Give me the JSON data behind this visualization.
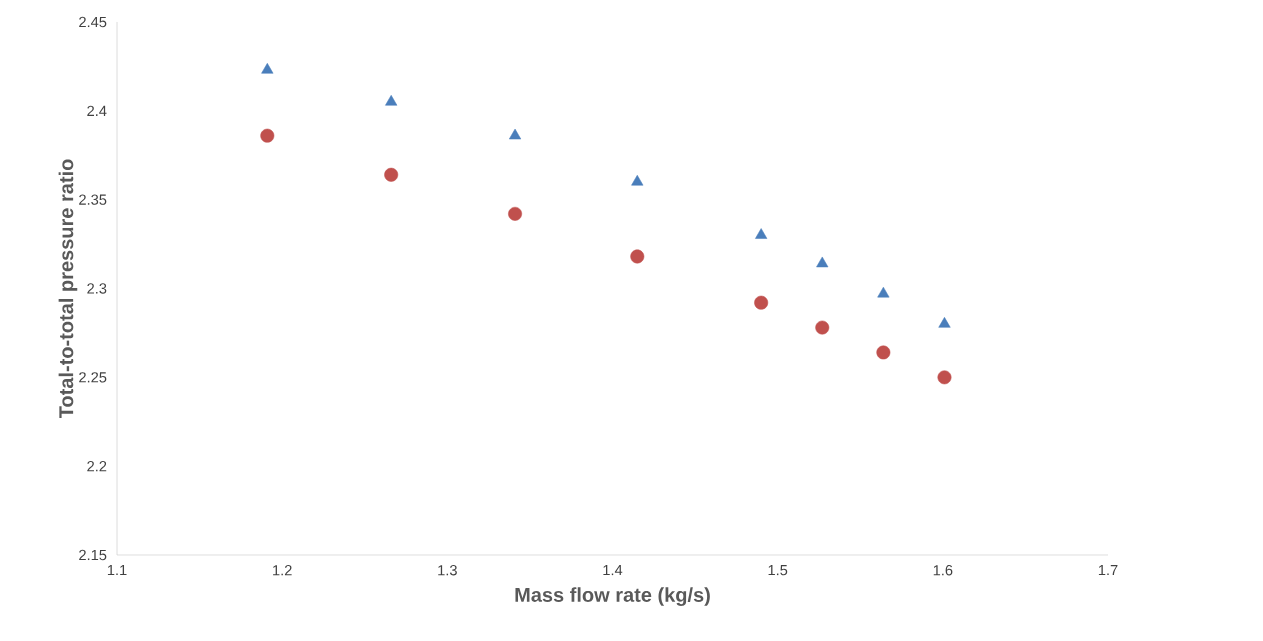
{
  "chart_data": {
    "type": "scatter",
    "xlabel": "Mass flow rate (kg/s)",
    "ylabel": "Total-to-total pressure ratio",
    "xlim": [
      1.1,
      1.7
    ],
    "xticks": [
      1.1,
      1.2,
      1.3,
      1.4,
      1.5,
      1.6,
      1.7
    ],
    "ylim": [
      2.15,
      2.45
    ],
    "yticks": [
      2.15,
      2.2,
      2.25,
      2.3,
      2.35,
      2.4,
      2.45
    ],
    "grid": false,
    "x": [
      1.191,
      1.266,
      1.341,
      1.415,
      1.49,
      1.527,
      1.564,
      1.601
    ],
    "series": [
      {
        "color": "#4a7ebb",
        "marker": "triangle",
        "values": [
          2.423,
          2.405,
          2.386,
          2.36,
          2.33,
          2.314,
          2.297,
          2.28
        ]
      },
      {
        "color": "#c0504d",
        "marker": "circle",
        "values": [
          2.386,
          2.364,
          2.342,
          2.318,
          2.292,
          2.278,
          2.264,
          2.25
        ]
      }
    ]
  }
}
